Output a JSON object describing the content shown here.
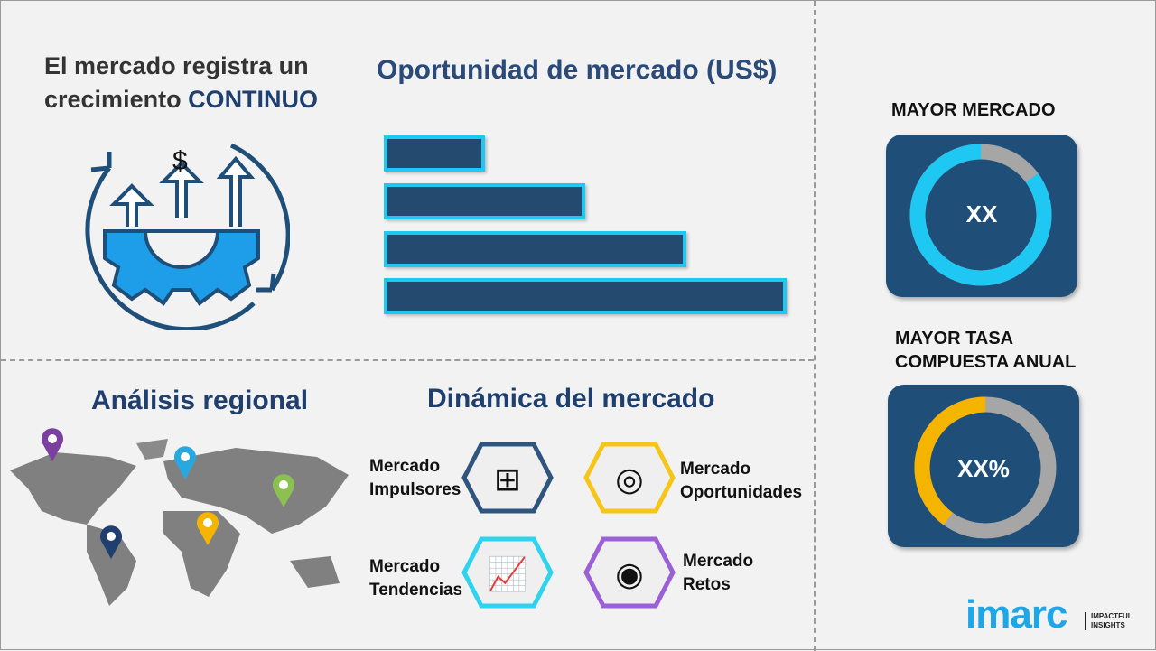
{
  "headline": {
    "line1": "El mercado registra un",
    "line2": "crecimiento ",
    "highlight": "CONTINUO"
  },
  "opportunity": {
    "title": "Oportunidad de mercado (US$)",
    "bars": [
      1,
      2,
      3,
      4
    ],
    "bar_color": "#244a70",
    "border_color": "#1ec8f2"
  },
  "regional": {
    "title": "Análisis regional",
    "pin_colors": [
      "#7b3fa0",
      "#29a8e0",
      "#8cc152",
      "#f5b400",
      "#1f3f6e"
    ]
  },
  "dynamics": {
    "title": "Dinámica del mercado",
    "items": [
      {
        "line1": "Mercado",
        "line2": "Impulsores",
        "icon": "puzzle-icon",
        "color": "#2f557f"
      },
      {
        "line1": "Mercado",
        "line2": "Oportunidades",
        "icon": "magnifier-dollar-icon",
        "color": "#f5c518"
      },
      {
        "line1": "Mercado",
        "line2": "Tendencias",
        "icon": "growth-chart-icon",
        "color": "#2ed3ee"
      },
      {
        "line1": "Mercado",
        "line2": "Retos",
        "icon": "target-icon",
        "color": "#9b5fd6"
      }
    ]
  },
  "largest": {
    "title": "MAYOR MERCADO",
    "value": "XX",
    "fill_fraction": 0.85,
    "color": "#1ec8f2"
  },
  "cagr": {
    "title1": "MAYOR TASA",
    "title2": "COMPUESTA ANUAL",
    "value": "XX%",
    "fill_fraction": 0.4,
    "color": "#f5b400"
  },
  "logo": {
    "name": "imarc",
    "tagline1": "IMPACTFUL",
    "tagline2": "INSIGHTS"
  }
}
